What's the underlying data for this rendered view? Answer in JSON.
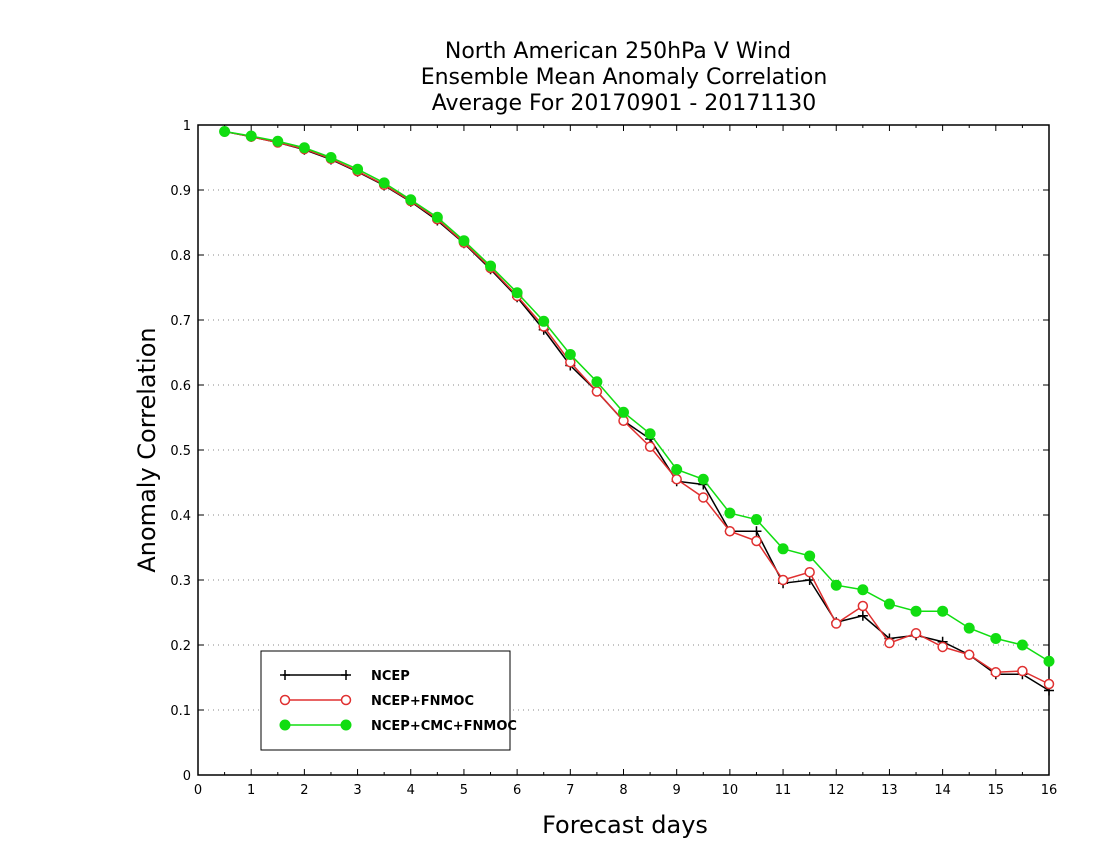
{
  "chart_data": {
    "type": "line",
    "title": [
      "North American 250hPa V Wind",
      "Ensemble Mean Anomaly Correlation",
      "Average For 20170901 - 20171130"
    ],
    "xlabel": "Forecast days",
    "ylabel": "Anomaly Correlation",
    "xlim": [
      0,
      16
    ],
    "ylim": [
      0,
      1
    ],
    "xticks": [
      "0",
      "1",
      "2",
      "3",
      "4",
      "5",
      "6",
      "7",
      "8",
      "9",
      "10",
      "11",
      "12",
      "13",
      "14",
      "15",
      "16"
    ],
    "yticks": [
      "0",
      "0.1",
      "0.2",
      "0.3",
      "0.4",
      "0.5",
      "0.6",
      "0.7",
      "0.8",
      "0.9",
      "1"
    ],
    "grid": "horizontal dotted",
    "legend_position": "bottom-left",
    "x": [
      0.5,
      1,
      1.5,
      2,
      2.5,
      3,
      3.5,
      4,
      4.5,
      5,
      5.5,
      6,
      6.5,
      7,
      7.5,
      8,
      8.5,
      9,
      9.5,
      10,
      10.5,
      11,
      11.5,
      12,
      12.5,
      13,
      13.5,
      14,
      14.5,
      15,
      15.5,
      16
    ],
    "series": [
      {
        "name": "NCEP",
        "color": "#000000",
        "marker": "plus",
        "values": [
          0.99,
          0.982,
          0.973,
          0.962,
          0.947,
          0.928,
          0.907,
          0.882,
          0.853,
          0.818,
          0.778,
          0.735,
          0.685,
          0.63,
          0.59,
          0.545,
          0.517,
          0.452,
          0.447,
          0.375,
          0.375,
          0.295,
          0.3,
          0.235,
          0.245,
          0.21,
          0.215,
          0.205,
          0.185,
          0.155,
          0.155,
          0.13
        ]
      },
      {
        "name": "NCEP+FNMOC",
        "color": "#e03030",
        "marker": "open-circle",
        "values": [
          0.99,
          0.982,
          0.973,
          0.963,
          0.948,
          0.929,
          0.908,
          0.883,
          0.855,
          0.819,
          0.78,
          0.737,
          0.69,
          0.635,
          0.59,
          0.545,
          0.505,
          0.455,
          0.427,
          0.375,
          0.36,
          0.3,
          0.312,
          0.233,
          0.26,
          0.203,
          0.218,
          0.197,
          0.185,
          0.158,
          0.16,
          0.14
        ]
      },
      {
        "name": "NCEP+CMC+FNMOC",
        "color": "#11dd11",
        "marker": "filled-circle",
        "values": [
          0.99,
          0.983,
          0.975,
          0.965,
          0.95,
          0.932,
          0.911,
          0.885,
          0.858,
          0.822,
          0.783,
          0.742,
          0.698,
          0.647,
          0.605,
          0.558,
          0.525,
          0.47,
          0.455,
          0.403,
          0.393,
          0.348,
          0.337,
          0.292,
          0.285,
          0.263,
          0.252,
          0.252,
          0.226,
          0.21,
          0.2,
          0.175
        ]
      }
    ]
  }
}
